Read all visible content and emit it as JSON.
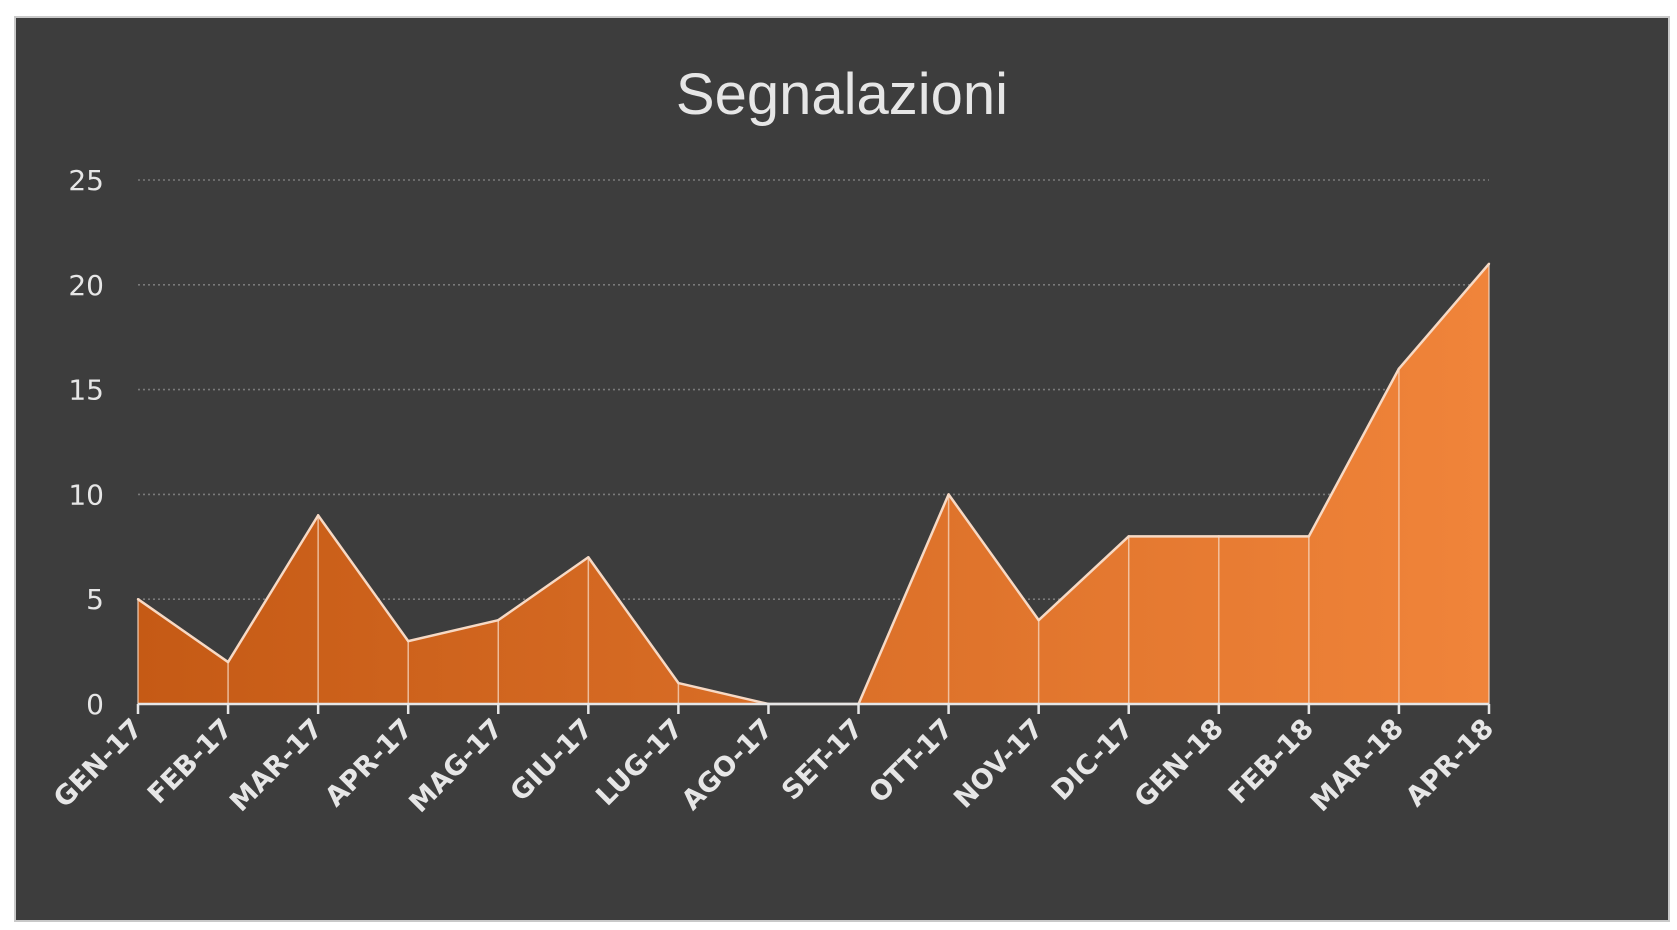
{
  "chart_data": {
    "type": "area",
    "title": "Segnalazioni",
    "categories": [
      "GEN-17",
      "FEB-17",
      "MAR-17",
      "APR-17",
      "MAG-17",
      "GIU-17",
      "LUG-17",
      "AGO-17",
      "SET-17",
      "OTT-17",
      "NOV-17",
      "DIC-17",
      "GEN-18",
      "FEB-18",
      "MAR-18",
      "APR-18"
    ],
    "values": [
      5,
      2,
      9,
      3,
      4,
      7,
      1,
      0,
      0,
      10,
      4,
      8,
      8,
      8,
      16,
      21
    ],
    "ylim": [
      0,
      25
    ],
    "yticks": [
      "0",
      "5",
      "10",
      "15",
      "20",
      "25"
    ],
    "grid": true,
    "legend": "none",
    "colors": {
      "background": "#3d3d3d",
      "frame_border": "#c9c9c9",
      "fill_start": "#c55a15",
      "fill_end": "#f0843a",
      "outline": "#f7d9c4",
      "gridline": "#7a7a7a",
      "axis": "#e6e6e6",
      "text": "#e6e6e6"
    }
  }
}
